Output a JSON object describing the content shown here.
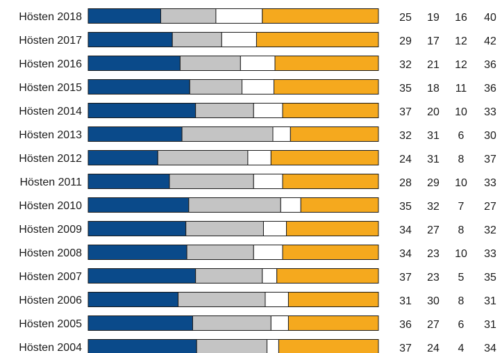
{
  "chart_data": {
    "type": "bar",
    "stacked": true,
    "orientation": "horizontal",
    "categories": [
      "Hösten 2018",
      "Hösten 2017",
      "Hösten 2016",
      "Hösten 2015",
      "Hösten 2014",
      "Hösten 2013",
      "Hösten 2012",
      "Hösten 2011",
      "Hösten 2010",
      "Hösten 2009",
      "Hösten 2008",
      "Hösten 2007",
      "Hösten 2006",
      "Hösten 2005",
      "Hösten 2004"
    ],
    "series": [
      {
        "color": "#0a4a8a",
        "values": [
          25,
          29,
          32,
          35,
          37,
          32,
          24,
          28,
          35,
          34,
          34,
          37,
          31,
          36,
          37
        ]
      },
      {
        "color": "#c4c4c4",
        "values": [
          19,
          17,
          21,
          18,
          20,
          31,
          31,
          29,
          32,
          27,
          23,
          23,
          30,
          27,
          24
        ]
      },
      {
        "color": "#ffffff",
        "values": [
          16,
          12,
          12,
          11,
          10,
          6,
          8,
          10,
          7,
          8,
          10,
          5,
          8,
          6,
          4
        ]
      },
      {
        "color": "#f5a91e",
        "values": [
          40,
          42,
          36,
          36,
          33,
          30,
          37,
          33,
          27,
          32,
          33,
          35,
          31,
          31,
          34
        ]
      }
    ],
    "xlim": [
      0,
      100
    ],
    "data_labels": true,
    "grid": false,
    "legend": "none"
  }
}
